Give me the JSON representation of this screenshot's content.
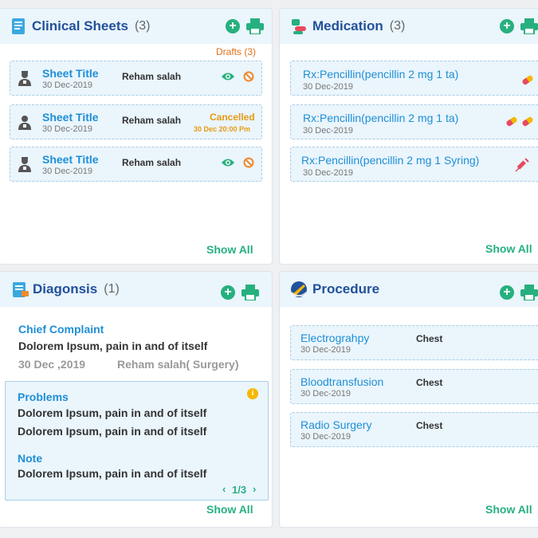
{
  "clinical": {
    "title": "Clinical Sheets",
    "count": "(3)",
    "drafts": "Drafts (3)",
    "show_all": "Show All",
    "items": [
      {
        "title": "Sheet Title",
        "date": "30 Dec-2019",
        "name": "Reham salah"
      },
      {
        "title": "Sheet Title",
        "date": "30 Dec-2019",
        "name": "Reham salah",
        "status": "Cancelled",
        "status_time": "30 Dec  20:00 Pm"
      },
      {
        "title": "Sheet Title",
        "date": "30 Dec-2019",
        "name": "Reham salah"
      }
    ]
  },
  "medication": {
    "title": "Medication",
    "count": "(3)",
    "show_all": "Show All",
    "items": [
      {
        "title": "Rx:Pencillin(pencillin 2 mg  1 ta)",
        "date": "30 Dec-2019"
      },
      {
        "title": "Rx:Pencillin(pencillin 2 mg  1 ta)",
        "date": "30 Dec-2019"
      },
      {
        "title": "Rx:Pencillin(pencillin 2 mg  1 Syring)",
        "date": "30 Dec-2019"
      }
    ]
  },
  "diagnosis": {
    "title": "Diagonsis",
    "count": "(1)",
    "chief_label": "Chief Complaint",
    "chief_text": "Dolorem Ipsum, pain in and of itself",
    "date": "30 Dec ,2019",
    "doctor": "Reham salah( Surgery)",
    "problems_label": "Problems",
    "problems": [
      "Dolorem Ipsum, pain in and of itself",
      "Dolorem Ipsum, pain in and of itself"
    ],
    "note_label": "Note",
    "note_text": "Dolorem Ipsum, pain in and of itself",
    "pager": "1/3",
    "show_all": "Show All"
  },
  "procedure": {
    "title": "Procedure",
    "show_all": "Show All",
    "items": [
      {
        "title": "Electrograhpy",
        "date": "30 Dec-2019",
        "site": "Chest"
      },
      {
        "title": "Bloodtransfusion",
        "date": "30 Dec-2019",
        "site": "Chest"
      },
      {
        "title": "Radio Surgery",
        "date": "30 Dec-2019",
        "site": "Chest"
      }
    ]
  }
}
